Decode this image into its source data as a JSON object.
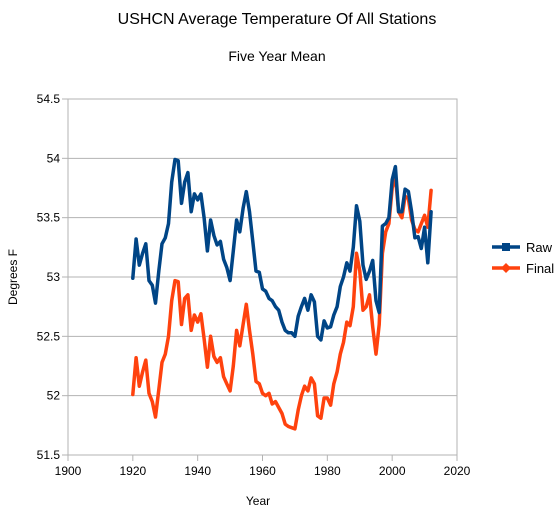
{
  "chart_data": {
    "type": "line",
    "title": "USHCN Average Temperature Of All Stations",
    "subtitle": "Five Year Mean",
    "xlabel": "Year",
    "ylabel": "Degrees F",
    "xlim": [
      1900,
      2020
    ],
    "ylim": [
      51.5,
      54.5
    ],
    "x_ticks": [
      "1900",
      "1920",
      "1940",
      "1960",
      "1980",
      "2000",
      "2020"
    ],
    "y_ticks": [
      "51.5",
      "52",
      "52.5",
      "53",
      "53.5",
      "54",
      "54.5"
    ],
    "x_tick_values": [
      1900,
      1920,
      1940,
      1960,
      1980,
      2000,
      2020
    ],
    "y_tick_values": [
      51.5,
      52,
      52.5,
      53,
      53.5,
      54,
      54.5
    ],
    "grid": "horizontal",
    "legend_position": "right",
    "series": [
      {
        "name": "Raw",
        "color": "#004586",
        "marker": "square",
        "x": [
          1920,
          1921,
          1922,
          1923,
          1924,
          1925,
          1926,
          1927,
          1928,
          1929,
          1930,
          1931,
          1932,
          1933,
          1934,
          1935,
          1936,
          1937,
          1938,
          1939,
          1940,
          1941,
          1942,
          1943,
          1944,
          1945,
          1946,
          1947,
          1948,
          1949,
          1950,
          1951,
          1952,
          1953,
          1954,
          1955,
          1956,
          1957,
          1958,
          1959,
          1960,
          1961,
          1962,
          1963,
          1964,
          1965,
          1966,
          1967,
          1968,
          1969,
          1970,
          1971,
          1972,
          1973,
          1974,
          1975,
          1976,
          1977,
          1978,
          1979,
          1980,
          1981,
          1982,
          1983,
          1984,
          1985,
          1986,
          1987,
          1988,
          1989,
          1990,
          1991,
          1992,
          1993,
          1994,
          1995,
          1996,
          1997,
          1998,
          1999,
          2000,
          2001,
          2002,
          2003,
          2004,
          2005,
          2006,
          2007,
          2008,
          2009,
          2010,
          2011,
          2012
        ],
        "y": [
          52.99,
          53.32,
          53.1,
          53.2,
          53.28,
          52.97,
          52.93,
          52.78,
          53.05,
          53.28,
          53.33,
          53.45,
          53.8,
          53.99,
          53.98,
          53.62,
          53.8,
          53.88,
          53.55,
          53.7,
          53.65,
          53.7,
          53.5,
          53.22,
          53.48,
          53.35,
          53.27,
          53.3,
          53.15,
          53.08,
          52.97,
          53.22,
          53.48,
          53.38,
          53.58,
          53.72,
          53.55,
          53.3,
          53.05,
          53.04,
          52.9,
          52.88,
          52.82,
          52.8,
          52.75,
          52.72,
          52.62,
          52.55,
          52.53,
          52.53,
          52.5,
          52.67,
          52.75,
          52.82,
          52.72,
          52.85,
          52.79,
          52.5,
          52.47,
          52.63,
          52.57,
          52.58,
          52.68,
          52.75,
          52.92,
          53.0,
          53.12,
          53.05,
          53.25,
          53.6,
          53.47,
          53.1,
          52.98,
          53.05,
          53.14,
          52.8,
          52.7,
          53.43,
          53.45,
          53.5,
          53.82,
          53.93,
          53.55,
          53.55,
          53.74,
          53.72,
          53.55,
          53.33,
          53.34,
          53.24,
          53.42,
          53.12,
          53.55
        ]
      },
      {
        "name": "Final",
        "color": "#ff420e",
        "marker": "diamond",
        "x": [
          1920,
          1921,
          1922,
          1923,
          1924,
          1925,
          1926,
          1927,
          1928,
          1929,
          1930,
          1931,
          1932,
          1933,
          1934,
          1935,
          1936,
          1937,
          1938,
          1939,
          1940,
          1941,
          1942,
          1943,
          1944,
          1945,
          1946,
          1947,
          1948,
          1949,
          1950,
          1951,
          1952,
          1953,
          1954,
          1955,
          1956,
          1957,
          1958,
          1959,
          1960,
          1961,
          1962,
          1963,
          1964,
          1965,
          1966,
          1967,
          1968,
          1969,
          1970,
          1971,
          1972,
          1973,
          1974,
          1975,
          1976,
          1977,
          1978,
          1979,
          1980,
          1981,
          1982,
          1983,
          1984,
          1985,
          1986,
          1987,
          1988,
          1989,
          1990,
          1991,
          1992,
          1993,
          1994,
          1995,
          1996,
          1997,
          1998,
          1999,
          2000,
          2001,
          2002,
          2003,
          2004,
          2005,
          2006,
          2007,
          2008,
          2009,
          2010,
          2011,
          2012
        ],
        "y": [
          52.01,
          52.32,
          52.08,
          52.2,
          52.3,
          52.02,
          51.95,
          51.82,
          52.05,
          52.28,
          52.35,
          52.5,
          52.8,
          52.97,
          52.96,
          52.6,
          52.82,
          52.85,
          52.55,
          52.68,
          52.62,
          52.69,
          52.48,
          52.24,
          52.5,
          52.33,
          52.28,
          52.32,
          52.16,
          52.1,
          52.04,
          52.25,
          52.55,
          52.42,
          52.6,
          52.77,
          52.55,
          52.35,
          52.12,
          52.1,
          52.02,
          52.0,
          52.02,
          51.93,
          51.95,
          51.9,
          51.85,
          51.76,
          51.74,
          51.73,
          51.72,
          51.88,
          52.0,
          52.08,
          52.04,
          52.15,
          52.1,
          51.83,
          51.81,
          51.98,
          51.98,
          51.92,
          52.1,
          52.2,
          52.35,
          52.45,
          52.62,
          52.59,
          52.75,
          53.2,
          53.05,
          52.72,
          52.75,
          52.85,
          52.58,
          52.35,
          52.6,
          53.2,
          53.38,
          53.45,
          53.75,
          53.85,
          53.55,
          53.5,
          53.68,
          53.66,
          53.48,
          53.4,
          53.38,
          53.45,
          53.52,
          53.42,
          53.73
        ]
      }
    ]
  }
}
